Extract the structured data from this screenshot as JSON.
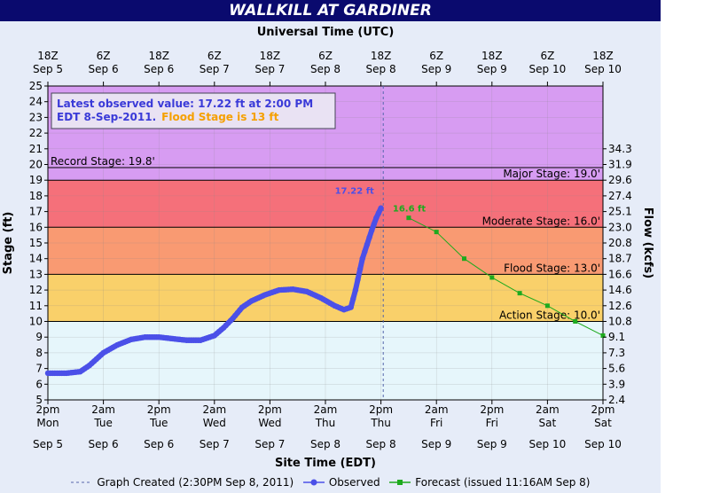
{
  "title": "WALLKILL AT GARDINER",
  "top_axis_title": "Universal Time (UTC)",
  "bottom_axis_title": "Site Time (EDT)",
  "left_axis_title": "Stage (ft)",
  "right_axis_title": "Flow (kcfs)",
  "info_box": {
    "line1": "Latest observed value: 17.22 ft at 2:00 PM",
    "line2_a": "EDT 8-Sep-2011.",
    "line2_b": "Flood Stage is 13 ft"
  },
  "legend": {
    "created": "Graph Created (2:30PM Sep 8, 2011)",
    "observed": "Observed",
    "forecast": "Forecast (issued 11:16AM Sep 8)"
  },
  "colors": {
    "record_band": "#d79cf2",
    "major_band": "#f5707a",
    "moderate_band": "#f99a72",
    "flood_band": "#f9d06a",
    "action_band": "#f7f27a",
    "normal_band": "#e6f6fb",
    "observed": "#4b50e8",
    "forecast": "#1eaa1e",
    "info_text": "#3a3ad8",
    "flood_text": "#f5a000"
  },
  "chart_data": {
    "type": "line",
    "x_unit": "hours from 2pm Mon Sep 5 (EDT)",
    "ylim": [
      5,
      25
    ],
    "xlim": [
      0,
      120
    ],
    "grid": true,
    "top_ticks": [
      {
        "x": 0,
        "l1": "18Z",
        "l2": "Sep 5"
      },
      {
        "x": 12,
        "l1": "6Z",
        "l2": "Sep 6"
      },
      {
        "x": 24,
        "l1": "18Z",
        "l2": "Sep 6"
      },
      {
        "x": 36,
        "l1": "6Z",
        "l2": "Sep 7"
      },
      {
        "x": 48,
        "l1": "18Z",
        "l2": "Sep 7"
      },
      {
        "x": 60,
        "l1": "6Z",
        "l2": "Sep 8"
      },
      {
        "x": 72,
        "l1": "18Z",
        "l2": "Sep 8"
      },
      {
        "x": 84,
        "l1": "6Z",
        "l2": "Sep 9"
      },
      {
        "x": 96,
        "l1": "18Z",
        "l2": "Sep 9"
      },
      {
        "x": 108,
        "l1": "6Z",
        "l2": "Sep 10"
      },
      {
        "x": 120,
        "l1": "18Z",
        "l2": "Sep 10"
      }
    ],
    "bottom_ticks": [
      {
        "x": 0,
        "l1": "2pm",
        "l2": "Mon",
        "l3": "Sep 5"
      },
      {
        "x": 12,
        "l1": "2am",
        "l2": "Tue",
        "l3": "Sep 6"
      },
      {
        "x": 24,
        "l1": "2pm",
        "l2": "Tue",
        "l3": "Sep 6"
      },
      {
        "x": 36,
        "l1": "2am",
        "l2": "Wed",
        "l3": "Sep 7"
      },
      {
        "x": 48,
        "l1": "2pm",
        "l2": "Wed",
        "l3": "Sep 7"
      },
      {
        "x": 60,
        "l1": "2am",
        "l2": "Thu",
        "l3": "Sep 8"
      },
      {
        "x": 72,
        "l1": "2pm",
        "l2": "Thu",
        "l3": "Sep 8"
      },
      {
        "x": 84,
        "l1": "2am",
        "l2": "Fri",
        "l3": "Sep 9"
      },
      {
        "x": 96,
        "l1": "2pm",
        "l2": "Fri",
        "l3": "Sep 9"
      },
      {
        "x": 108,
        "l1": "2am",
        "l2": "Sat",
        "l3": "Sep 10"
      },
      {
        "x": 120,
        "l1": "2pm",
        "l2": "Sat",
        "l3": "Sep 10"
      }
    ],
    "left_ticks": [
      5,
      6,
      7,
      8,
      9,
      10,
      11,
      12,
      13,
      14,
      15,
      16,
      17,
      18,
      19,
      20,
      21,
      22,
      23,
      24,
      25
    ],
    "right_ticks": [
      {
        "stage": 5,
        "label": "2.4"
      },
      {
        "stage": 6,
        "label": "3.9"
      },
      {
        "stage": 7,
        "label": "5.6"
      },
      {
        "stage": 8,
        "label": "7.3"
      },
      {
        "stage": 9,
        "label": "9.1"
      },
      {
        "stage": 10,
        "label": "10.8"
      },
      {
        "stage": 11,
        "label": "12.6"
      },
      {
        "stage": 12,
        "label": "14.6"
      },
      {
        "stage": 13,
        "label": "16.6"
      },
      {
        "stage": 14,
        "label": "18.7"
      },
      {
        "stage": 15,
        "label": "20.8"
      },
      {
        "stage": 16,
        "label": "23.0"
      },
      {
        "stage": 17,
        "label": "25.1"
      },
      {
        "stage": 18,
        "label": "27.4"
      },
      {
        "stage": 19,
        "label": "29.6"
      },
      {
        "stage": 20,
        "label": "31.9"
      },
      {
        "stage": 21,
        "label": "34.3"
      }
    ],
    "stages": [
      {
        "name": "Record Stage: 19.8'",
        "value": 19.8,
        "align": "left"
      },
      {
        "name": "Major Stage: 19.0'",
        "value": 19.0,
        "align": "right"
      },
      {
        "name": "Moderate Stage: 16.0'",
        "value": 16.0,
        "align": "right"
      },
      {
        "name": "Flood Stage: 13.0'",
        "value": 13.0,
        "align": "right"
      },
      {
        "name": "Action Stage: 10.0'",
        "value": 10.0,
        "align": "right"
      }
    ],
    "created_x": 72.5,
    "observed": {
      "name": "Observed",
      "label": "17.22 ft",
      "points": [
        [
          0,
          6.7
        ],
        [
          4,
          6.7
        ],
        [
          7,
          6.8
        ],
        [
          9,
          7.2
        ],
        [
          12,
          8.0
        ],
        [
          15,
          8.5
        ],
        [
          18,
          8.85
        ],
        [
          21,
          9.0
        ],
        [
          24,
          9.0
        ],
        [
          27,
          8.9
        ],
        [
          30,
          8.8
        ],
        [
          33,
          8.8
        ],
        [
          36,
          9.1
        ],
        [
          38,
          9.6
        ],
        [
          40,
          10.2
        ],
        [
          42,
          10.9
        ],
        [
          44,
          11.3
        ],
        [
          47,
          11.7
        ],
        [
          50,
          12.0
        ],
        [
          53,
          12.05
        ],
        [
          56,
          11.9
        ],
        [
          59,
          11.5
        ],
        [
          62,
          11.0
        ],
        [
          64,
          10.75
        ],
        [
          65.5,
          10.9
        ],
        [
          66.5,
          12.0
        ],
        [
          68,
          14.0
        ],
        [
          70,
          15.8
        ],
        [
          71,
          16.6
        ],
        [
          72,
          17.22
        ]
      ]
    },
    "forecast": {
      "name": "Forecast",
      "label": "16.6 ft",
      "points": [
        [
          78,
          16.6
        ],
        [
          84,
          15.7
        ],
        [
          90,
          14.0
        ],
        [
          96,
          12.8
        ],
        [
          102,
          11.8
        ],
        [
          108,
          11.0
        ],
        [
          114,
          10.0
        ],
        [
          120,
          9.1
        ]
      ]
    }
  }
}
